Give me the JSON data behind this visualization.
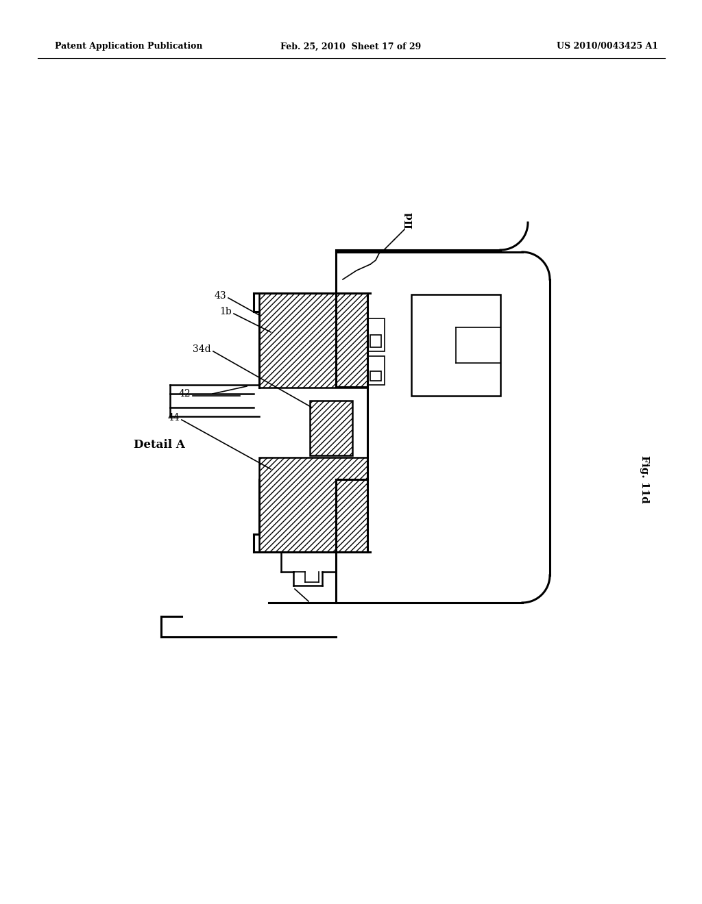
{
  "bg_color": "#ffffff",
  "line_color": "#000000",
  "header_left": "Patent Application Publication",
  "header_mid": "Feb. 25, 2010  Sheet 17 of 29",
  "header_right": "US 2010/0043425 A1",
  "fig_label": "Fig. 11d",
  "detail_label": "Detail A",
  "ref_IId": "IId"
}
